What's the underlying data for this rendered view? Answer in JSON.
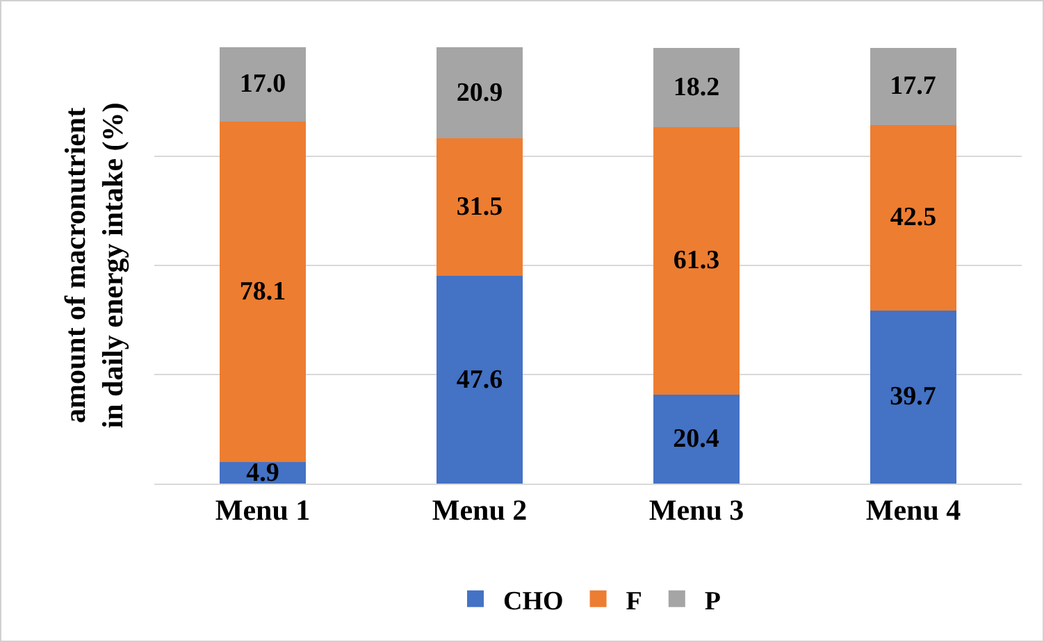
{
  "chart_data": {
    "type": "bar",
    "stacked": true,
    "ylabel": "amount of macronutrient in daily energy intake (%)",
    "categories": [
      "Menu 1",
      "Menu 2",
      "Menu 3",
      "Menu 4"
    ],
    "series": [
      {
        "name": "CHO",
        "color": "#4472c4",
        "values": [
          4.9,
          47.6,
          20.4,
          39.7
        ],
        "value_labels": [
          "4.9",
          "47.6",
          "20.4",
          "39.7"
        ]
      },
      {
        "name": "F",
        "color": "#ed7d31",
        "values": [
          78.1,
          31.5,
          61.3,
          42.5
        ],
        "value_labels": [
          "78.1",
          "31.5",
          "61.3",
          "42.5"
        ]
      },
      {
        "name": "P",
        "color": "#a5a5a5",
        "values": [
          17.0,
          20.9,
          18.2,
          17.7
        ],
        "value_labels": [
          "17.0",
          "20.9",
          "18.2",
          "17.7"
        ]
      }
    ],
    "ylim": [
      0,
      100
    ],
    "yticks": [
      {
        "value": 0,
        "label": null
      },
      {
        "value": 25,
        "label": null
      },
      {
        "value": 50,
        "label": null
      },
      {
        "value": 75,
        "label": null
      }
    ],
    "grid": "y",
    "legend": "bottom",
    "tick_labels": "x"
  }
}
